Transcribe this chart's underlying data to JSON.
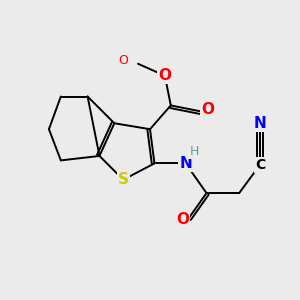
{
  "background_color": "#ebebeb",
  "atom_colors": {
    "C": "#000000",
    "H": "#5f9ea0",
    "N": "#0000ff",
    "O": "#ff0000",
    "S": "#cccc00"
  },
  "figsize": [
    3.0,
    3.0
  ],
  "dpi": 100
}
